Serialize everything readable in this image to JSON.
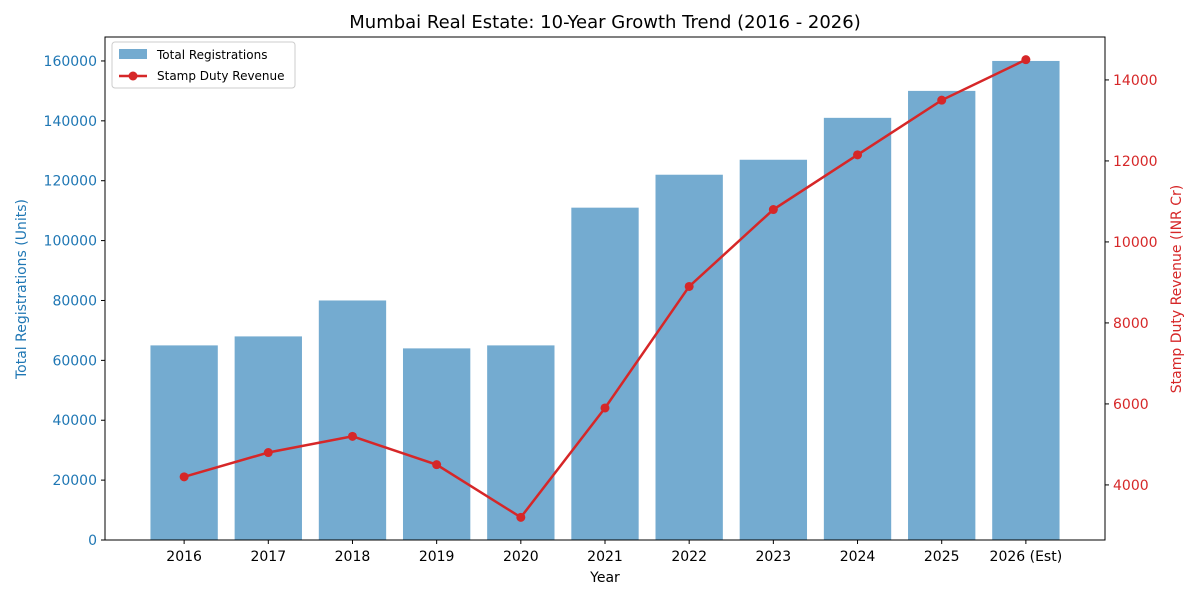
{
  "chart_data": {
    "type": "bar+line",
    "title": "Mumbai Real Estate: 10-Year Growth Trend (2016 - 2026)",
    "xlabel": "Year",
    "ylabel_left": "Total Registrations (Units)",
    "ylabel_right": "Stamp Duty Revenue (INR Cr)",
    "categories": [
      "2016",
      "2017",
      "2018",
      "2019",
      "2020",
      "2021",
      "2022",
      "2023",
      "2024",
      "2025",
      "2026 (Est)"
    ],
    "series": [
      {
        "name": "Total Registrations",
        "type": "bar",
        "axis": "left",
        "color": "#74abd0",
        "values": [
          65000,
          68000,
          80000,
          64000,
          65000,
          111000,
          122000,
          127000,
          141000,
          150000,
          160000
        ]
      },
      {
        "name": "Stamp Duty Revenue",
        "type": "line",
        "axis": "right",
        "color": "#d62728",
        "values": [
          4200,
          4800,
          5200,
          4500,
          3200,
          5900,
          8900,
          10800,
          12150,
          13500,
          14500
        ]
      }
    ],
    "ylim_left": [
      0,
      168000
    ],
    "yticks_left": [
      "0",
      "20000",
      "40000",
      "60000",
      "80000",
      "100000",
      "120000",
      "140000",
      "160000"
    ],
    "ylim_right": [
      2640,
      15060
    ],
    "yticks_right": [
      "4000",
      "6000",
      "8000",
      "10000",
      "12000",
      "14000"
    ],
    "left_axis_color": "#1f77b4",
    "right_axis_color": "#d62728",
    "grid": false,
    "legend": "top-left"
  }
}
